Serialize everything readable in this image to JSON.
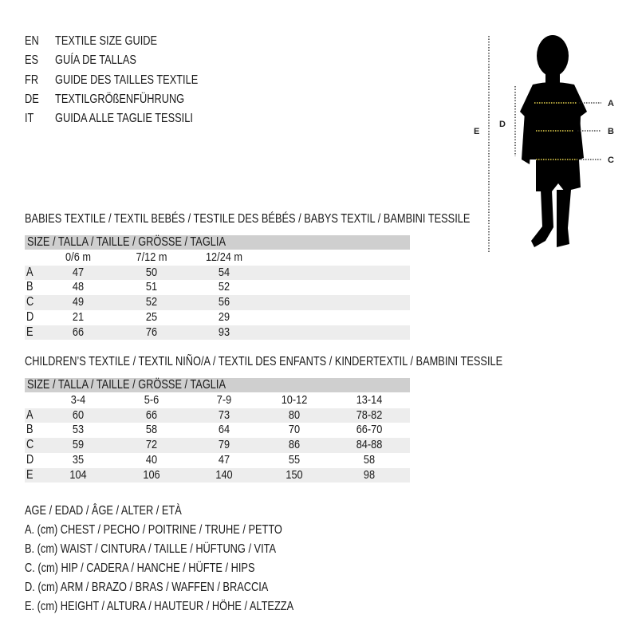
{
  "titles": [
    {
      "code": "EN",
      "text": "TEXTILE SIZE GUIDE"
    },
    {
      "code": "ES",
      "text": "GUÍA DE TALLAS"
    },
    {
      "code": "FR",
      "text": "GUIDE DES TAILLES TEXTILE"
    },
    {
      "code": "DE",
      "text": "TEXTILGRÖßENFÜHRUNG"
    },
    {
      "code": "IT",
      "text": "GUIDA ALLE TAGLIE TESSILI"
    }
  ],
  "figure": {
    "labels": {
      "a": "A",
      "b": "B",
      "c": "C",
      "d": "D",
      "e": "E"
    },
    "measure_line_color": "#e8d44d"
  },
  "babies": {
    "heading": "BABIES TEXTILE / TEXTIL BEBÉS / TESTILE DES BÉBÉS / BABYS TEXTIL / BAMBINI TESSILE",
    "size_header": "SIZE / TALLA / TAILLE / GRÖSSE / TAGLIA",
    "columns": [
      "0/6 m",
      "7/12 m",
      "12/24 m"
    ],
    "rows": [
      {
        "label": "A",
        "values": [
          "47",
          "50",
          "54"
        ]
      },
      {
        "label": "B",
        "values": [
          "48",
          "51",
          "52"
        ]
      },
      {
        "label": "C",
        "values": [
          "49",
          "52",
          "56"
        ]
      },
      {
        "label": "D",
        "values": [
          "21",
          "25",
          "29"
        ]
      },
      {
        "label": "E",
        "values": [
          "66",
          "76",
          "93"
        ]
      }
    ]
  },
  "children": {
    "heading": "CHILDREN’S TEXTILE / TEXTIL NIÑO/A / TEXTIL DES ENFANTS / KINDERTEXTIL / BAMBINI TESSILE",
    "size_header": "SIZE / TALLA / TAILLE / GRÖSSE / TAGLIA",
    "columns": [
      "3-4",
      "5-6",
      "7-9",
      "10-12",
      "13-14"
    ],
    "rows": [
      {
        "label": "A",
        "values": [
          "60",
          "66",
          "73",
          "80",
          "78-82"
        ]
      },
      {
        "label": "B",
        "values": [
          "53",
          "58",
          "64",
          "70",
          "66-70"
        ]
      },
      {
        "label": "C",
        "values": [
          "59",
          "72",
          "79",
          "86",
          "84-88"
        ]
      },
      {
        "label": "D",
        "values": [
          "35",
          "40",
          "47",
          "55",
          "58"
        ]
      },
      {
        "label": "E",
        "values": [
          "104",
          "106",
          "140",
          "150",
          "98"
        ]
      }
    ]
  },
  "legend": [
    "AGE / EDAD / ÂGE / ALTER / ETÀ",
    "A. (cm) CHEST / PECHO / POITRINE / TRUHE / PETTO",
    "B. (cm) WAIST / CINTURA / TAILLE / HÜFTUNG / VITA",
    "C. (cm) HIP / CADERA / HANCHE / HÜFTE / HIPS",
    "D. (cm) ARM / BRAZO / BRAS / WAFFEN / BRACCIA",
    "E. (cm) HEIGHT / ALTURA / HAUTEUR / HÖHE / ALTEZZA"
  ]
}
